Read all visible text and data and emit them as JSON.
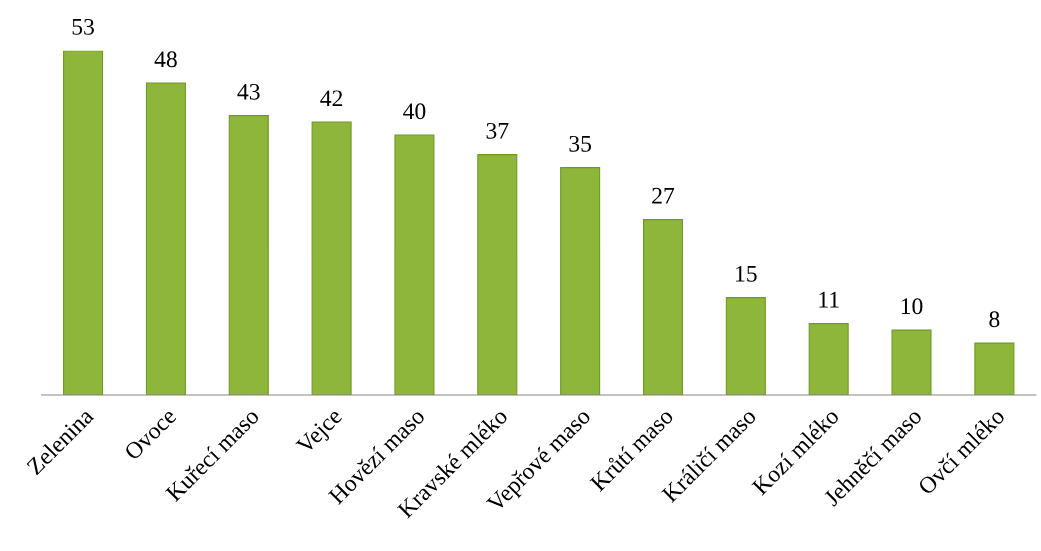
{
  "chart_data": {
    "type": "bar",
    "categories": [
      "Zelenina",
      "Ovoce",
      "Kuřecí maso",
      "Vejce",
      "Hovězí maso",
      "Kravské mléko",
      "Vepřové maso",
      "Krůtí maso",
      "Králičí maso",
      "Kozí mléko",
      "Jehněčí maso",
      "Ovčí mléko"
    ],
    "values": [
      53,
      48,
      43,
      42,
      40,
      37,
      35,
      27,
      15,
      11,
      10,
      8
    ],
    "color": "#8db63a",
    "data_labels": true,
    "grid": false,
    "legend": false
  }
}
